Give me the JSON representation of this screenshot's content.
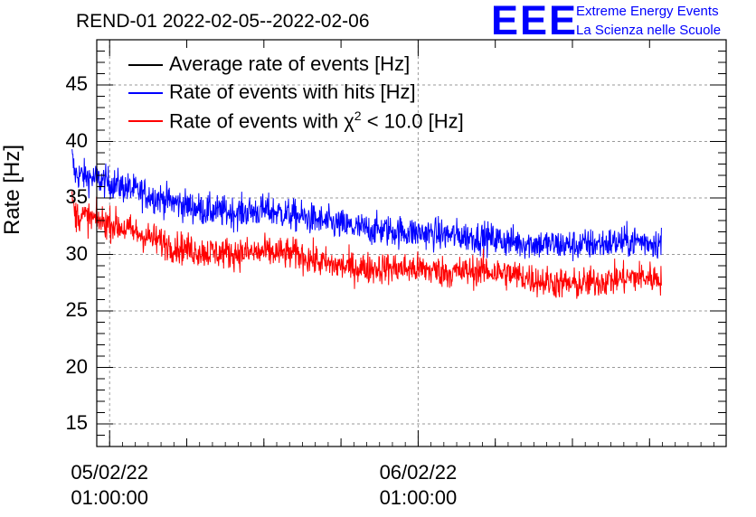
{
  "chart_data": {
    "type": "line",
    "title": "REND-01 2022-02-05--2022-02-06",
    "ylabel": "Rate [Hz]",
    "xlabel": "",
    "ylim": [
      13,
      49
    ],
    "xlim": [
      0,
      2.04
    ],
    "x_unit": "days since 05/02/22 00:00:00",
    "yticks": [
      15,
      20,
      25,
      30,
      35,
      40,
      45
    ],
    "xticks": [
      {
        "x": 0.0417,
        "date": "05/02/22",
        "time": "01:00:00"
      },
      {
        "x": 1.0417,
        "date": "06/02/22",
        "time": "01:00:00"
      }
    ],
    "grid": true,
    "legend_position": "top-left",
    "legend": [
      {
        "name": "Average rate of events [Hz]",
        "color": "#000000"
      },
      {
        "name": "Rate of events with hits [Hz]",
        "color": "#0000ff"
      },
      {
        "name_pre": "Rate of events with ",
        "name_sym": "χ",
        "name_sup": "2",
        "name_post": " < 10.0 [Hz]",
        "color": "#ff0000"
      }
    ],
    "series": [
      {
        "name": "Rate of events with hits [Hz]",
        "color": "#0000ff",
        "x": [
          -0.08,
          0.05,
          0.15,
          0.25,
          0.35,
          0.45,
          0.55,
          0.65,
          0.75,
          0.85,
          0.95,
          1.05,
          1.15,
          1.25,
          1.35,
          1.45,
          1.55,
          1.65,
          1.75,
          1.83
        ],
        "y": [
          37.2,
          36.3,
          35.4,
          34.6,
          33.9,
          33.7,
          33.9,
          33.4,
          32.8,
          32.3,
          32.1,
          31.9,
          31.7,
          31.5,
          31.1,
          30.9,
          30.8,
          31.0,
          31.2,
          31.0
        ],
        "noise": 1.0
      },
      {
        "name": "Rate of events with χ2 < 10.0 [Hz]",
        "color": "#ff0000",
        "x": [
          -0.08,
          0.05,
          0.15,
          0.25,
          0.35,
          0.45,
          0.55,
          0.65,
          0.75,
          0.85,
          0.95,
          1.05,
          1.15,
          1.25,
          1.35,
          1.45,
          1.55,
          1.65,
          1.75,
          1.83
        ],
        "y": [
          33.6,
          32.7,
          31.7,
          30.7,
          30.2,
          30.1,
          30.2,
          30.0,
          29.1,
          28.8,
          28.8,
          28.7,
          28.4,
          28.6,
          28.2,
          27.6,
          27.3,
          27.7,
          28.0,
          27.9
        ],
        "noise": 1.0
      }
    ]
  }
}
